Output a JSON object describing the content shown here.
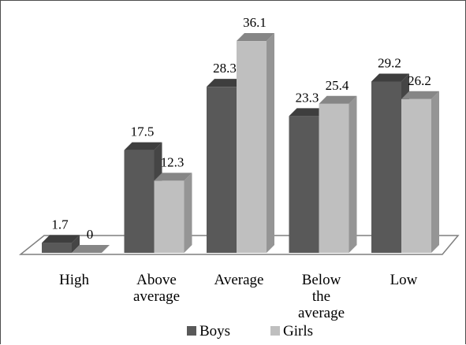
{
  "chart_data": {
    "type": "bar",
    "categories": [
      [
        "High"
      ],
      [
        "Above",
        "average"
      ],
      [
        "Average"
      ],
      [
        "Below",
        "the",
        "average"
      ],
      [
        "Low"
      ]
    ],
    "series": [
      {
        "name": "Boys",
        "values": [
          1.7,
          17.5,
          28.3,
          23.3,
          29.2
        ],
        "color": "#595959"
      },
      {
        "name": "Girls",
        "values": [
          0,
          12.3,
          36.1,
          25.4,
          26.2
        ],
        "color": "#bfbfbf"
      }
    ],
    "title": "",
    "xlabel": "",
    "ylabel": "",
    "ylim": [
      0,
      40
    ],
    "grid": false,
    "legend_position": "bottom",
    "style": "3d-clustered-column"
  }
}
